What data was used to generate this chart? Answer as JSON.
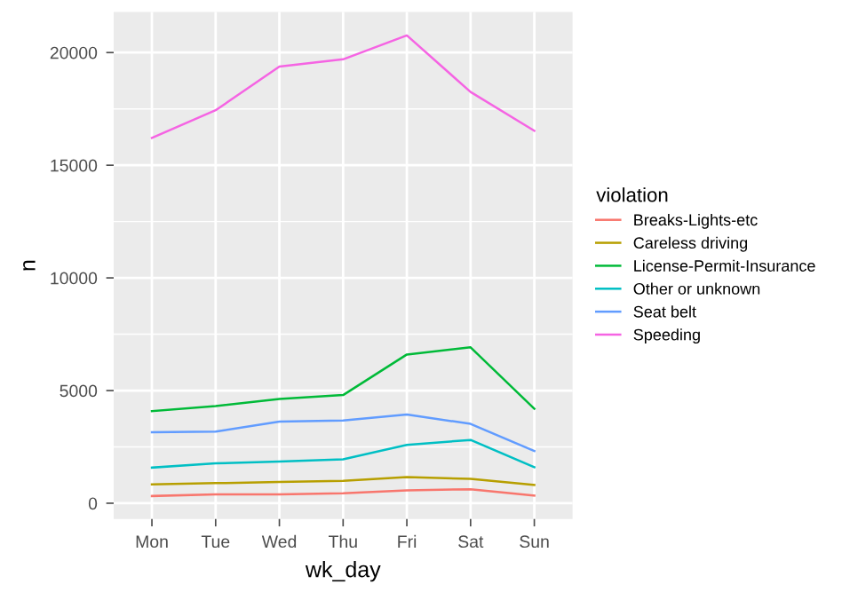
{
  "chart_data": {
    "type": "line",
    "xlabel": "wk_day",
    "ylabel": "n",
    "legend_title": "violation",
    "legend": "right",
    "grid": true,
    "categories": [
      "Mon",
      "Tue",
      "Wed",
      "Thu",
      "Fri",
      "Sat",
      "Sun"
    ],
    "ylim": [
      -700,
      21800
    ],
    "yticks": [
      0,
      5000,
      10000,
      15000,
      20000
    ],
    "series": [
      {
        "name": "Breaks-Lights-etc",
        "color": "#F8766D",
        "values": [
          320,
          390,
          390,
          440,
          570,
          620,
          340
        ]
      },
      {
        "name": "Careless driving",
        "color": "#B79F00",
        "values": [
          840,
          890,
          940,
          990,
          1160,
          1080,
          810
        ]
      },
      {
        "name": "License-Permit-Insurance",
        "color": "#00BA38",
        "values": [
          4090,
          4310,
          4630,
          4800,
          6600,
          6920,
          4190
        ]
      },
      {
        "name": "Other or unknown",
        "color": "#00BFC4",
        "values": [
          1580,
          1770,
          1850,
          1950,
          2590,
          2810,
          1600
        ]
      },
      {
        "name": "Seat belt",
        "color": "#619CFF",
        "values": [
          3150,
          3180,
          3620,
          3670,
          3940,
          3520,
          2320
        ]
      },
      {
        "name": "Speeding",
        "color": "#F564E3",
        "values": [
          16210,
          17440,
          19380,
          19700,
          20760,
          18250,
          16530
        ]
      }
    ]
  }
}
